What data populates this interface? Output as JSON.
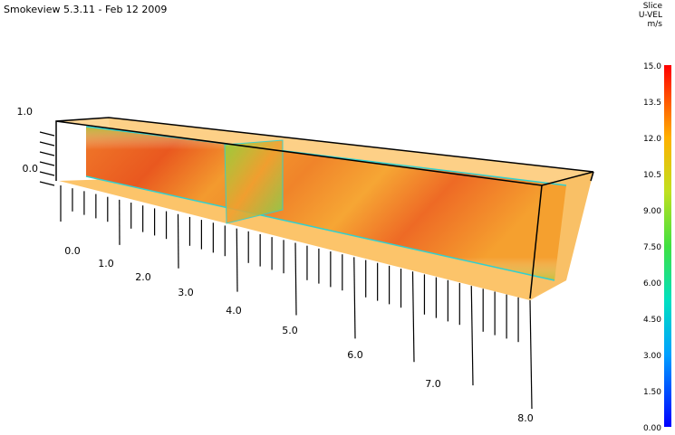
{
  "header": {
    "title": "Smokeview 5.3.11 - Feb 12 2009"
  },
  "colorbar": {
    "heading": [
      "Slice",
      "U-VEL",
      "m/s"
    ],
    "labels": [
      "15.0",
      "13.5",
      "12.0",
      "10.5",
      "9.00",
      "7.50",
      "6.00",
      "4.50",
      "3.00",
      "1.50",
      "0.00"
    ]
  },
  "axes": {
    "z_labels": [
      "1.0",
      "0.0"
    ],
    "x_labels": [
      "0.0",
      "1.0",
      "2.0",
      "3.0",
      "4.0",
      "5.0",
      "6.0",
      "7.0",
      "8.0"
    ]
  }
}
